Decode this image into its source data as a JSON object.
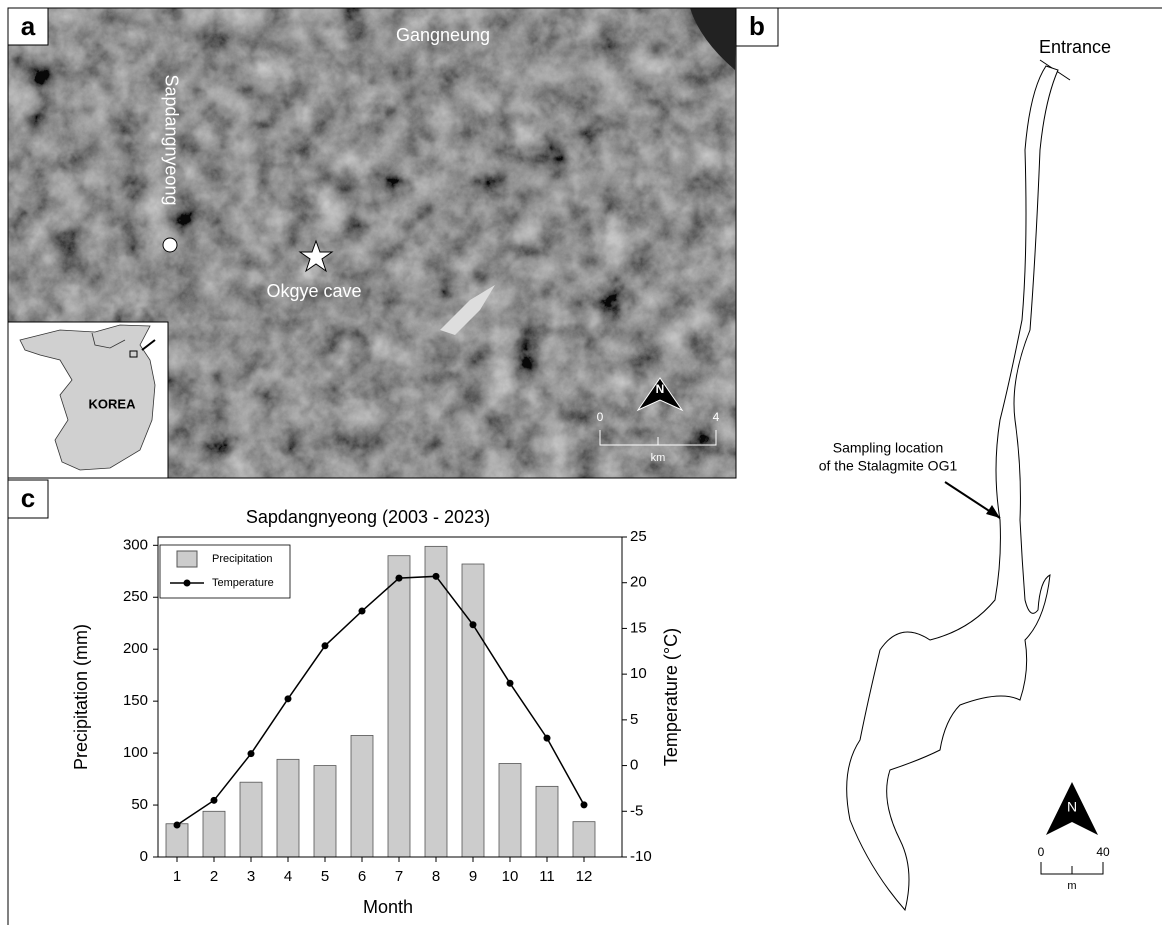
{
  "figure": {
    "panel_labels": [
      "a",
      "b",
      "c"
    ],
    "map_a": {
      "city": "Gangneung",
      "station": "Sapdangnyeong",
      "cave": "Okgye cave",
      "inset": "KOREA",
      "north": "N",
      "scale": [
        0,
        4
      ],
      "scale_unit": "km"
    },
    "map_b": {
      "entrance": "Entrance",
      "sampling": [
        "Sampling location",
        "of the Stalagmite OG1"
      ],
      "north": "N",
      "scale": [
        0,
        40
      ],
      "scale_unit": "m"
    }
  },
  "chart_data": {
    "type": "bar",
    "title": "Sapdangnyeong (2003 - 2023)",
    "x_label": "Month",
    "y_label": "Precipitation (mm)",
    "y2_label": "Temperature (°C)",
    "categories": [
      "1",
      "2",
      "3",
      "4",
      "5",
      "6",
      "7",
      "8",
      "9",
      "10",
      "11",
      "12"
    ],
    "series": [
      {
        "name": "Precipitation",
        "type": "bar",
        "color": "#cccccc",
        "values": [
          32,
          44,
          72,
          94,
          88,
          117,
          290,
          299,
          282,
          90,
          68,
          34
        ]
      },
      {
        "name": "Temperature",
        "type": "line",
        "axis": "y2",
        "color": "#000000",
        "values": [
          -6.5,
          -3.8,
          1.3,
          7.3,
          13.1,
          16.9,
          20.5,
          20.7,
          15.4,
          9.0,
          3.0,
          -4.3
        ]
      }
    ],
    "ylim": [
      0,
      308
    ],
    "yticks": [
      0,
      50,
      100,
      150,
      200,
      250,
      300
    ],
    "y2lim": [
      -10,
      25
    ],
    "y2ticks": [
      -10,
      -5,
      0,
      5,
      10,
      15,
      20,
      25
    ],
    "legend": "upper left"
  }
}
